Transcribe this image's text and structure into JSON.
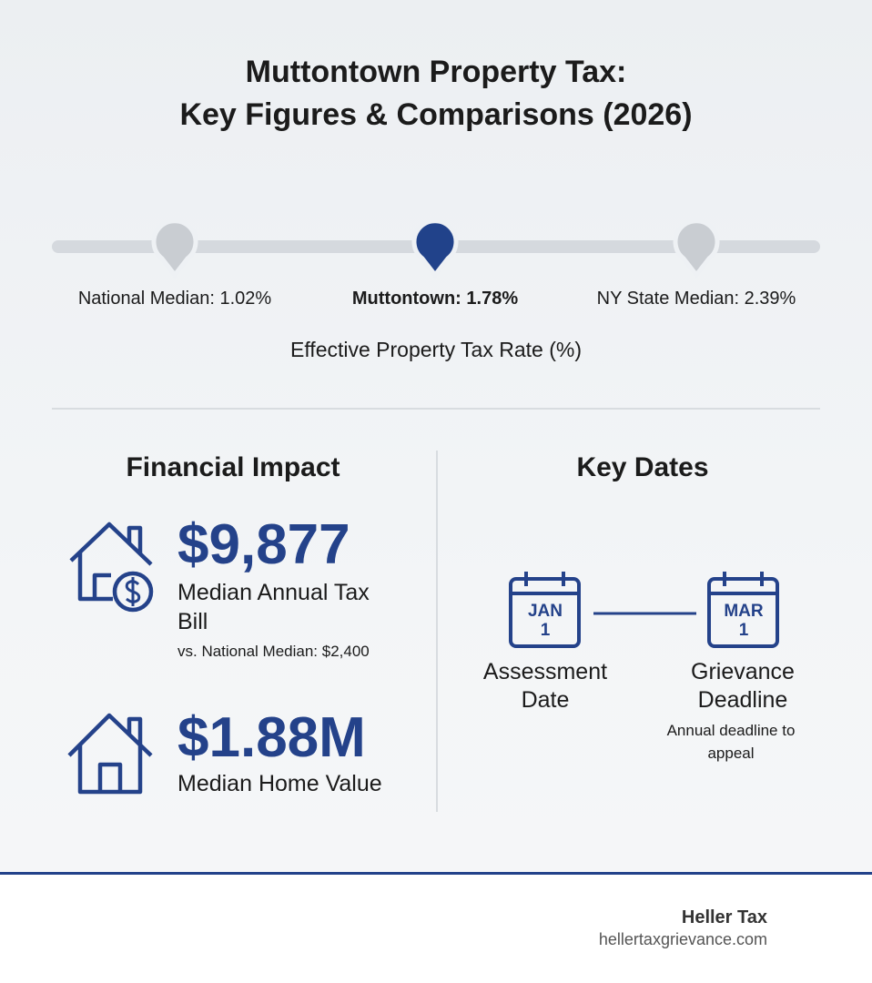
{
  "header": {
    "title_lines": [
      "Muttontown Property Tax:",
      "Key Figures & Comparisons (2026)"
    ]
  },
  "rate_comparison": {
    "markers": [
      {
        "label": "National Median: 1.02%"
      },
      {
        "label": "Muttontown: 1.78%"
      },
      {
        "label": "NY State Median: 2.39%"
      }
    ],
    "caption": "Effective Property Tax Rate (%)"
  },
  "financial_impact": {
    "heading": "Financial Impact",
    "items": [
      {
        "value": "$9,877",
        "label": "Median Annual Tax Bill",
        "note": "vs. National Median: $2,400"
      },
      {
        "value": "$1.88M",
        "label": "Median Home Value"
      }
    ]
  },
  "key_dates": {
    "heading": "Key Dates",
    "dates": [
      {
        "month": "JAN",
        "day": "1",
        "label": "Assessment Date"
      },
      {
        "month": "MAR",
        "day": "1",
        "label": "Grievance Deadline",
        "note": "Annual deadline to appeal"
      }
    ]
  },
  "footer": {
    "brand": "Heller Tax",
    "website": "hellertaxgrievance.com"
  }
}
